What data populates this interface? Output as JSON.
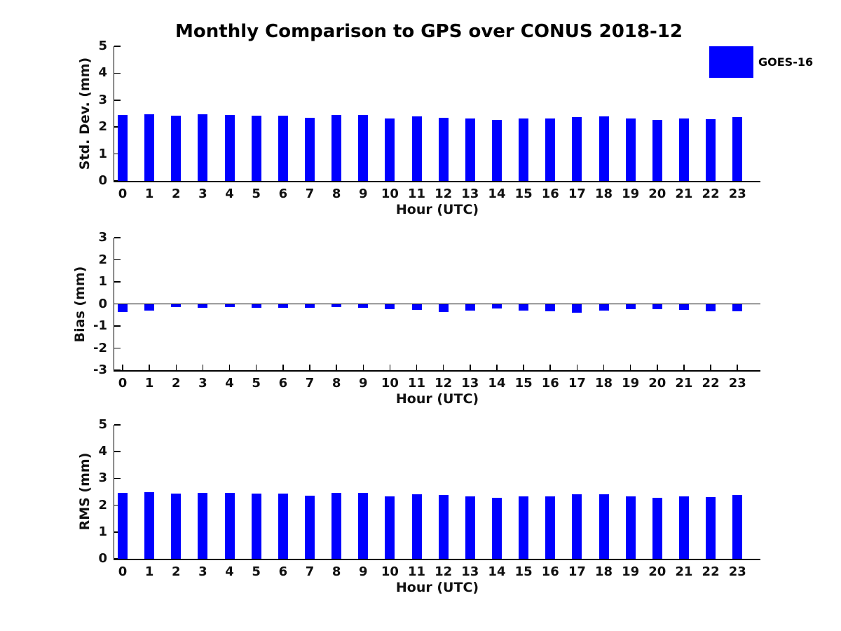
{
  "title": "Monthly Comparison to GPS over CONUS 2018-12",
  "legend": {
    "label": "GOES-16",
    "color": "#0000FF"
  },
  "chart_data": [
    {
      "type": "bar",
      "panel": "std-dev",
      "ylabel": "Std. Dev. (mm)",
      "xlabel": "Hour (UTC)",
      "categories": [
        "0",
        "1",
        "2",
        "3",
        "4",
        "5",
        "6",
        "7",
        "8",
        "9",
        "10",
        "11",
        "12",
        "13",
        "14",
        "15",
        "16",
        "17",
        "18",
        "19",
        "20",
        "21",
        "22",
        "23"
      ],
      "series": [
        {
          "name": "GOES-16",
          "values": [
            2.45,
            2.47,
            2.43,
            2.47,
            2.45,
            2.43,
            2.43,
            2.35,
            2.45,
            2.45,
            2.33,
            2.4,
            2.34,
            2.32,
            2.27,
            2.32,
            2.32,
            2.38,
            2.4,
            2.31,
            2.27,
            2.31,
            2.29,
            2.37
          ]
        }
      ],
      "ylim": [
        0,
        5
      ],
      "yticks": [
        0,
        1,
        2,
        3,
        4,
        5
      ],
      "bar_color": "#0000FF",
      "grid": false,
      "legend_position": "top-right"
    },
    {
      "type": "bar",
      "panel": "bias",
      "ylabel": "Bias (mm)",
      "xlabel": "Hour (UTC)",
      "categories": [
        "0",
        "1",
        "2",
        "3",
        "4",
        "5",
        "6",
        "7",
        "8",
        "9",
        "10",
        "11",
        "12",
        "13",
        "14",
        "15",
        "16",
        "17",
        "18",
        "19",
        "20",
        "21",
        "22",
        "23"
      ],
      "series": [
        {
          "name": "GOES-16",
          "values": [
            -0.35,
            -0.3,
            -0.13,
            -0.16,
            -0.14,
            -0.16,
            -0.17,
            -0.17,
            -0.14,
            -0.18,
            -0.25,
            -0.28,
            -0.37,
            -0.29,
            -0.21,
            -0.29,
            -0.33,
            -0.4,
            -0.29,
            -0.23,
            -0.23,
            -0.27,
            -0.32,
            -0.34
          ]
        }
      ],
      "ylim": [
        -3,
        3
      ],
      "yticks": [
        3,
        2,
        1,
        0,
        -1,
        -2,
        -3
      ],
      "bar_color": "#0000FF",
      "grid": false,
      "legend_position": "none"
    },
    {
      "type": "bar",
      "panel": "rms",
      "ylabel": "RMS (mm)",
      "xlabel": "Hour (UTC)",
      "categories": [
        "0",
        "1",
        "2",
        "3",
        "4",
        "5",
        "6",
        "7",
        "8",
        "9",
        "10",
        "11",
        "12",
        "13",
        "14",
        "15",
        "16",
        "17",
        "18",
        "19",
        "20",
        "21",
        "22",
        "23"
      ],
      "series": [
        {
          "name": "GOES-16",
          "values": [
            2.47,
            2.49,
            2.43,
            2.47,
            2.45,
            2.44,
            2.43,
            2.36,
            2.45,
            2.46,
            2.34,
            2.41,
            2.37,
            2.33,
            2.28,
            2.33,
            2.34,
            2.41,
            2.42,
            2.32,
            2.28,
            2.32,
            2.31,
            2.39
          ]
        }
      ],
      "ylim": [
        0,
        5
      ],
      "yticks": [
        0,
        1,
        2,
        3,
        4,
        5
      ],
      "bar_color": "#0000FF",
      "grid": false,
      "legend_position": "none"
    }
  ]
}
